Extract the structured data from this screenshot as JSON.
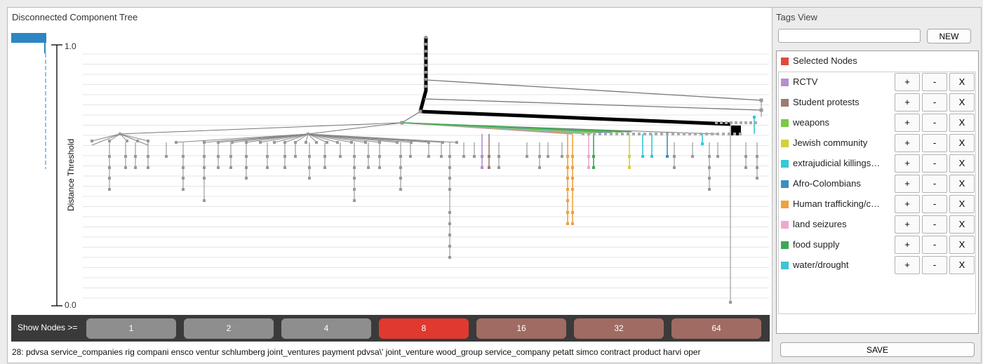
{
  "left_panel": {
    "title": "Disconnected Component Tree",
    "axis": {
      "label": "Distance Threshold",
      "top_tick": "1.0",
      "bottom_tick": "0.0"
    },
    "node_filter": {
      "label": "Show Nodes >=",
      "options": [
        {
          "label": "1",
          "color": "#8e8e8e"
        },
        {
          "label": "2",
          "color": "#8e8e8e"
        },
        {
          "label": "4",
          "color": "#8e8e8e"
        },
        {
          "label": "8",
          "color": "#e0392f"
        },
        {
          "label": "16",
          "color": "#a06b62"
        },
        {
          "label": "32",
          "color": "#a06b62"
        },
        {
          "label": "64",
          "color": "#a06b62"
        }
      ],
      "selected": "8"
    },
    "status": "28: pdvsa service_companies rig compani ensco ventur schlumberg joint_ventures payment pdvsa\\' joint_venture wood_group service_company petatt simco contract product harvi oper"
  },
  "tags_view": {
    "title": "Tags View",
    "input_value": "",
    "new_label": "NEW",
    "selected_nodes": {
      "label": "Selected Nodes",
      "color": "#e04a3a"
    },
    "button_labels": {
      "add": "+",
      "remove": "-",
      "delete": "X"
    },
    "tags": [
      {
        "label": "RCTV",
        "color": "#b28fce"
      },
      {
        "label": "Student protests",
        "color": "#9c7b72"
      },
      {
        "label": "weapons",
        "color": "#7ac943"
      },
      {
        "label": "Jewish community",
        "color": "#d4d03a"
      },
      {
        "label": "extrajudicial killings…",
        "color": "#34c9d4"
      },
      {
        "label": "Afro-Colombians",
        "color": "#3b8ec2"
      },
      {
        "label": "Human trafficking/c…",
        "color": "#f0a13a"
      },
      {
        "label": "land seizures",
        "color": "#f1a6cf"
      },
      {
        "label": "food supply",
        "color": "#3caa55"
      },
      {
        "label": "water/drought",
        "color": "#3cc6d2"
      }
    ],
    "save_label": "SAVE"
  }
}
